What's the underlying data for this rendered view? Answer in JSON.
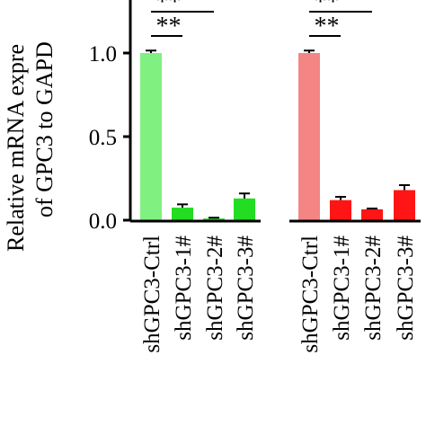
{
  "chart_data": {
    "type": "bar",
    "ylabel": [
      "Relative mRNA expre",
      "of GPC3 to GAPD"
    ],
    "categories": [
      "shGPC3-Ctrl",
      "shGPC3-1#",
      "shGPC3-2#",
      "shGPC3-3#",
      "shGPC3-Ctrl",
      "shGPC3-1#",
      "shGPC3-2#",
      "shGPC3-3#"
    ],
    "values": [
      1.0,
      0.075,
      0.01,
      0.13,
      1.0,
      0.12,
      0.065,
      0.18
    ],
    "errors": [
      0.015,
      0.02,
      0.005,
      0.03,
      0.015,
      0.02,
      0.005,
      0.03
    ],
    "colors": [
      "#80f080",
      "#22dd22",
      "#22dd22",
      "#22dd22",
      "#f58585",
      "#ff1515",
      "#ff1515",
      "#ff1515"
    ],
    "annotations": [
      "**",
      "**",
      "**",
      "**"
    ],
    "ylim": [
      0,
      1.3
    ],
    "yticks": [
      {
        "value": 0,
        "label": "0.0"
      },
      0.5,
      {
        "value": 1,
        "label": "1.0"
      }
    ]
  }
}
